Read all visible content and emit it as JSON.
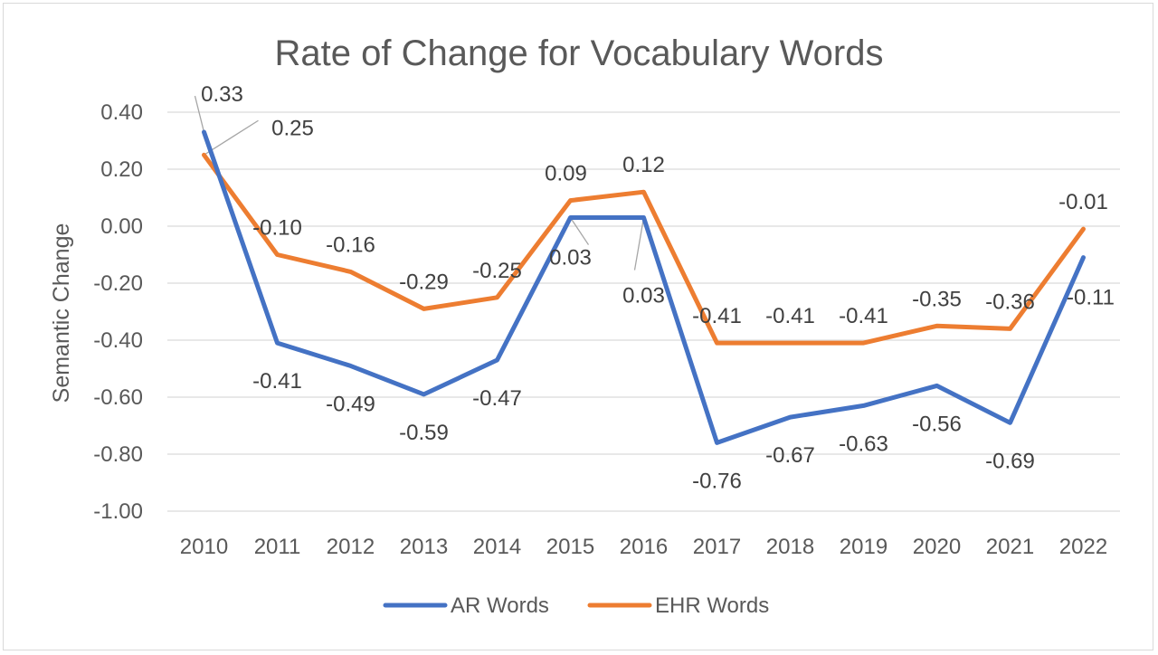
{
  "chart_data": {
    "type": "line",
    "title": "Rate of Change for Vocabulary Words",
    "xlabel": "",
    "ylabel": "Semantic Change",
    "categories": [
      "2010",
      "2011",
      "2012",
      "2013",
      "2014",
      "2015",
      "2016",
      "2017",
      "2018",
      "2019",
      "2020",
      "2021",
      "2022"
    ],
    "ylim": [
      -1.0,
      0.4
    ],
    "y_ticks": [
      "0.40",
      "0.20",
      "0.00",
      "-0.20",
      "-0.40",
      "-0.60",
      "-0.80",
      "-1.00"
    ],
    "grid": true,
    "legend_position": "bottom",
    "series": [
      {
        "name": "AR Words",
        "color": "#4472c4",
        "values": [
          0.33,
          -0.41,
          -0.49,
          -0.59,
          -0.47,
          0.03,
          0.03,
          -0.76,
          -0.67,
          -0.63,
          -0.56,
          -0.69,
          -0.11
        ],
        "labels": [
          "0.33",
          "-0.41",
          "-0.49",
          "-0.59",
          "-0.47",
          "0.03",
          "0.03",
          "-0.76",
          "-0.67",
          "-0.63",
          "-0.56",
          "-0.69",
          "-0.11"
        ]
      },
      {
        "name": "EHR Words",
        "color": "#ed7d31",
        "values": [
          0.25,
          -0.1,
          -0.16,
          -0.29,
          -0.25,
          0.09,
          0.12,
          -0.41,
          -0.41,
          -0.41,
          -0.35,
          -0.36,
          -0.01
        ],
        "labels": [
          "0.25",
          "-0.10",
          "-0.16",
          "-0.29",
          "-0.25",
          "0.09",
          "0.12",
          "-0.41",
          "-0.41",
          "-0.41",
          "-0.35",
          "-0.36",
          "-0.01"
        ]
      }
    ]
  }
}
